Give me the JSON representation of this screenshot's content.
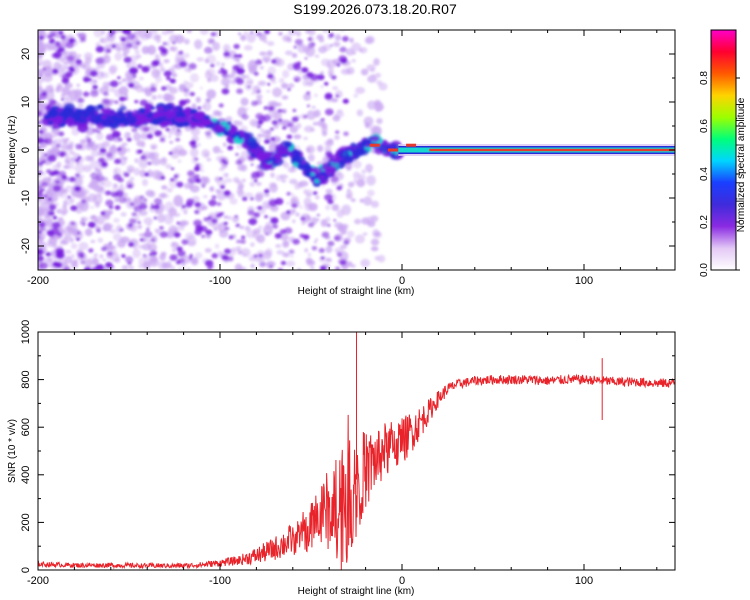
{
  "title": "S199.2026.073.18.20.R07",
  "colors": {
    "line": "#e8232a",
    "axis": "#000000",
    "speckle": "#7a1ee0",
    "speckle_light": "#c9a6f2",
    "band_core": "#e63a2e",
    "band_mid": "#18d6d0",
    "band_edge": "#2a2ad8"
  },
  "chart_data": [
    {
      "type": "heatmap",
      "id": "spectrogram",
      "xlabel": "Height of straight line (km)",
      "ylabel": "Frequency (Hz)",
      "xlim": [
        -200,
        150
      ],
      "ylim": [
        -25,
        25
      ],
      "xticks": [
        -200,
        -100,
        0,
        100
      ],
      "xtick_labels": [
        "-200",
        "-100",
        "0",
        "100"
      ],
      "yticks": [
        -20,
        -10,
        0,
        10,
        20
      ],
      "ytick_labels": [
        "-20",
        "-10",
        "0",
        "10",
        "20"
      ],
      "colorbar": {
        "label": "Normalized spectral amplitude",
        "range": [
          0,
          1
        ],
        "ticks": [
          0.0,
          0.2,
          0.4,
          0.6,
          0.8
        ],
        "tick_labels": [
          "0.0",
          "0.2",
          "0.4",
          "0.6",
          "0.8"
        ],
        "colormap": [
          "#ffffff",
          "#e3c8f5",
          "#8a2be2",
          "#3f2bdb",
          "#1a3fff",
          "#00d6ff",
          "#00ff7a",
          "#9cff00",
          "#ffd400",
          "#ff5a00",
          "#ff0030",
          "#ff00c8"
        ]
      },
      "signal_track": [
        {
          "x": -115,
          "y": 7
        },
        {
          "x": -100,
          "y": 5
        },
        {
          "x": -85,
          "y": 2
        },
        {
          "x": -72,
          "y": -3
        },
        {
          "x": -64,
          "y": 1
        },
        {
          "x": -55,
          "y": -3
        },
        {
          "x": -45,
          "y": -6
        },
        {
          "x": -35,
          "y": -2
        },
        {
          "x": -25,
          "y": 0
        },
        {
          "x": -15,
          "y": 2
        },
        {
          "x": -8,
          "y": 0
        },
        {
          "x": 0,
          "y": 0
        },
        {
          "x": 150,
          "y": 0
        }
      ],
      "steady_band": {
        "x_start": 15,
        "x_end": 150,
        "frequency": 0
      }
    },
    {
      "type": "line",
      "id": "snr",
      "xlabel": "Height of straight line (km)",
      "ylabel": "SNR (10 * v/v)",
      "xlim": [
        -200,
        150
      ],
      "ylim": [
        0,
        1000
      ],
      "xticks": [
        -200,
        -100,
        0,
        100
      ],
      "xtick_labels": [
        "-200",
        "-100",
        "0",
        "100"
      ],
      "yticks": [
        0,
        200,
        400,
        600,
        800,
        1000
      ],
      "ytick_labels": [
        "0",
        "200",
        "400",
        "600",
        "800",
        "1000"
      ],
      "series": [
        {
          "name": "SNR",
          "x": [
            -200,
            -180,
            -160,
            -140,
            -120,
            -110,
            -100,
            -90,
            -80,
            -70,
            -60,
            -50,
            -45,
            -40,
            -35,
            -30,
            -25,
            -20,
            -15,
            -10,
            -5,
            0,
            5,
            10,
            15,
            20,
            25,
            30,
            40,
            50,
            60,
            70,
            80,
            90,
            100,
            110,
            120,
            130,
            140,
            150
          ],
          "y": [
            25,
            20,
            20,
            18,
            18,
            22,
            30,
            40,
            60,
            90,
            130,
            180,
            220,
            260,
            300,
            340,
            380,
            420,
            460,
            500,
            520,
            540,
            580,
            620,
            670,
            720,
            760,
            780,
            795,
            800,
            800,
            800,
            795,
            800,
            800,
            795,
            790,
            790,
            785,
            785
          ],
          "noise": [
            10,
            10,
            10,
            10,
            10,
            12,
            15,
            20,
            35,
            50,
            70,
            100,
            130,
            180,
            260,
            320,
            220,
            160,
            140,
            120,
            110,
            100,
            90,
            70,
            50,
            35,
            25,
            20,
            20,
            20,
            20,
            20,
            20,
            20,
            20,
            20,
            20,
            20,
            20,
            20
          ]
        }
      ],
      "annotations": [
        {
          "x": -25,
          "y": 1000,
          "note": "spike"
        },
        {
          "x": 110,
          "y": 630,
          "note": "dip"
        },
        {
          "x": 110,
          "y": 890,
          "note": "peak"
        }
      ]
    }
  ]
}
